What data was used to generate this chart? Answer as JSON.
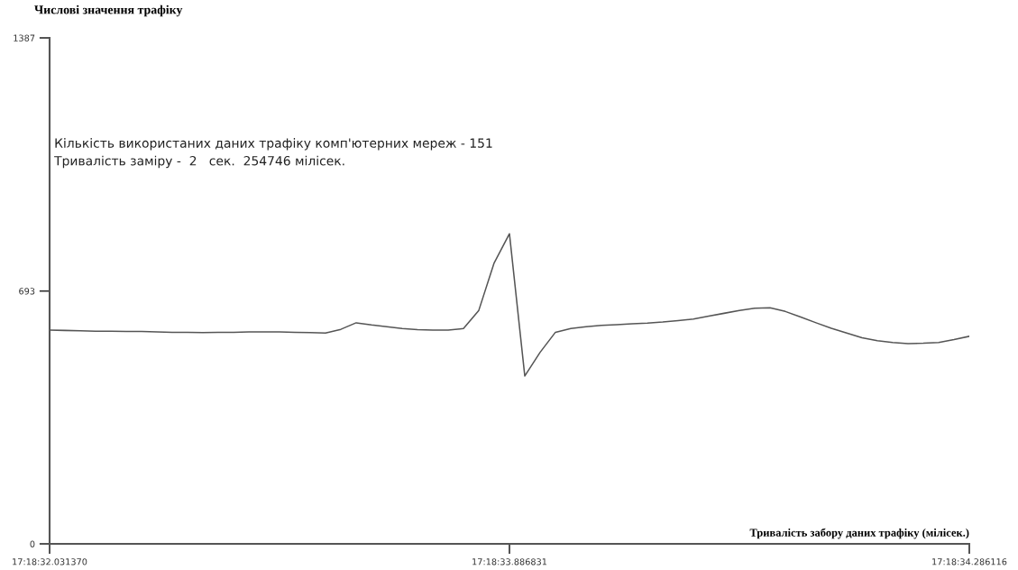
{
  "chart_data": {
    "type": "line",
    "title": "Числові значення трафіку",
    "xlabel": "Тривалість забору даних трафіку (мілісек.)",
    "annotations": [
      "Кількість використаних даних трафіку комп'ютерних мереж - 151",
      "Тривалість заміру -  2   сек.  254746 мілісек."
    ],
    "categories": [
      "17:18:32.031370",
      null,
      null,
      null,
      null,
      null,
      null,
      null,
      null,
      null,
      null,
      null,
      null,
      null,
      null,
      null,
      null,
      null,
      null,
      null,
      null,
      null,
      null,
      null,
      null,
      null,
      null,
      null,
      null,
      null,
      "17:18:33.886831",
      null,
      null,
      null,
      null,
      null,
      null,
      null,
      null,
      null,
      null,
      null,
      null,
      null,
      null,
      null,
      null,
      null,
      null,
      null,
      null,
      null,
      null,
      null,
      null,
      null,
      null,
      null,
      null,
      null,
      "17:18:34.286116"
    ],
    "series": [
      {
        "color": "#555555",
        "values": [
          586,
          585,
          584,
          583,
          583,
          582,
          582,
          581,
          580,
          580,
          579,
          580,
          580,
          581,
          581,
          581,
          580,
          579,
          578,
          588,
          606,
          600,
          595,
          590,
          587,
          586,
          586,
          590,
          640,
          770,
          850,
          460,
          525,
          580,
          590,
          595,
          599,
          601,
          603,
          605,
          608,
          612,
          616,
          624,
          632,
          640,
          646,
          647,
          637,
          622,
          606,
          591,
          578,
          565,
          557,
          552,
          549,
          550,
          552,
          560,
          569
        ]
      }
    ],
    "ylim": [
      0,
      1387
    ],
    "yticks": [
      0,
      693,
      1387
    ],
    "grid": false,
    "legend": false,
    "marker": "none",
    "line_style": "solid"
  }
}
